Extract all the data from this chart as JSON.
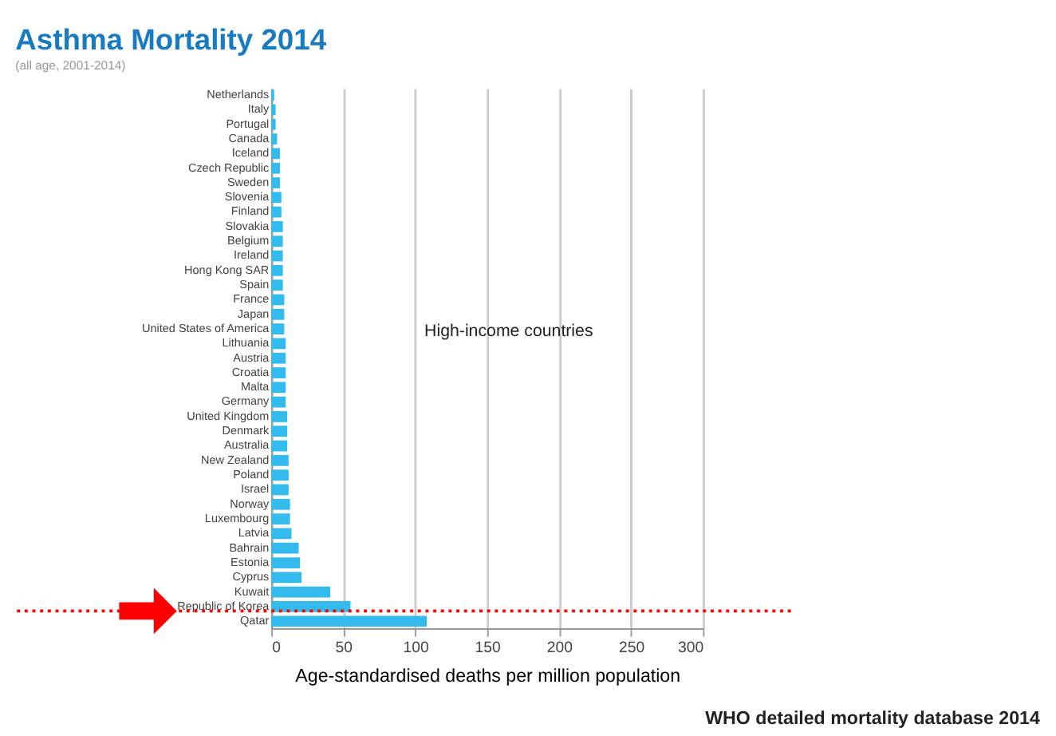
{
  "chart_data": {
    "type": "bar",
    "orientation": "horizontal",
    "title": "Asthma  Mortality 2014",
    "subtitle": "(all age, 2001-2014)",
    "xlabel": "Age-standardised  deaths per million population",
    "categories": [
      "Netherlands",
      "Italy",
      "Portugal",
      "Canada",
      "Iceland",
      "Czech Republic",
      "Sweden",
      "Slovenia",
      "Finland",
      "Slovakia",
      "Belgium",
      "Ireland",
      "Hong Kong SAR",
      "Spain",
      "France",
      "Japan",
      "United States of America",
      "Lithuania",
      "Austria",
      "Croatia",
      "Malta",
      "Germany",
      "United Kingdom",
      "Denmark",
      "Australia",
      "New Zealand",
      "Poland",
      "Israel",
      "Norway",
      "Luxembourg",
      "Latvia",
      "Bahrain",
      "Estonia",
      "Cyprus",
      "Kuwait",
      "Republic of Korea",
      "Qatar"
    ],
    "values": [
      2,
      3,
      3,
      4,
      6,
      6,
      6,
      7,
      7,
      8,
      8,
      8,
      8,
      8,
      9,
      9,
      9,
      10,
      10,
      10,
      10,
      10,
      11,
      11,
      11,
      12,
      12,
      12,
      13,
      13,
      14,
      19,
      20,
      21,
      41,
      55,
      108
    ],
    "color": "#33bbee",
    "xlim": [
      0,
      300
    ],
    "xticks": [
      0,
      50,
      100,
      150,
      200,
      250,
      300
    ],
    "grid": "x",
    "ref_lines": [
      {
        "axis": "y",
        "value": "Republic of Korea",
        "color": "#ff0000",
        "line_style": "dotted"
      }
    ],
    "annotations": [
      "High-income countries",
      "WHO detailed mortality database 2014"
    ]
  }
}
